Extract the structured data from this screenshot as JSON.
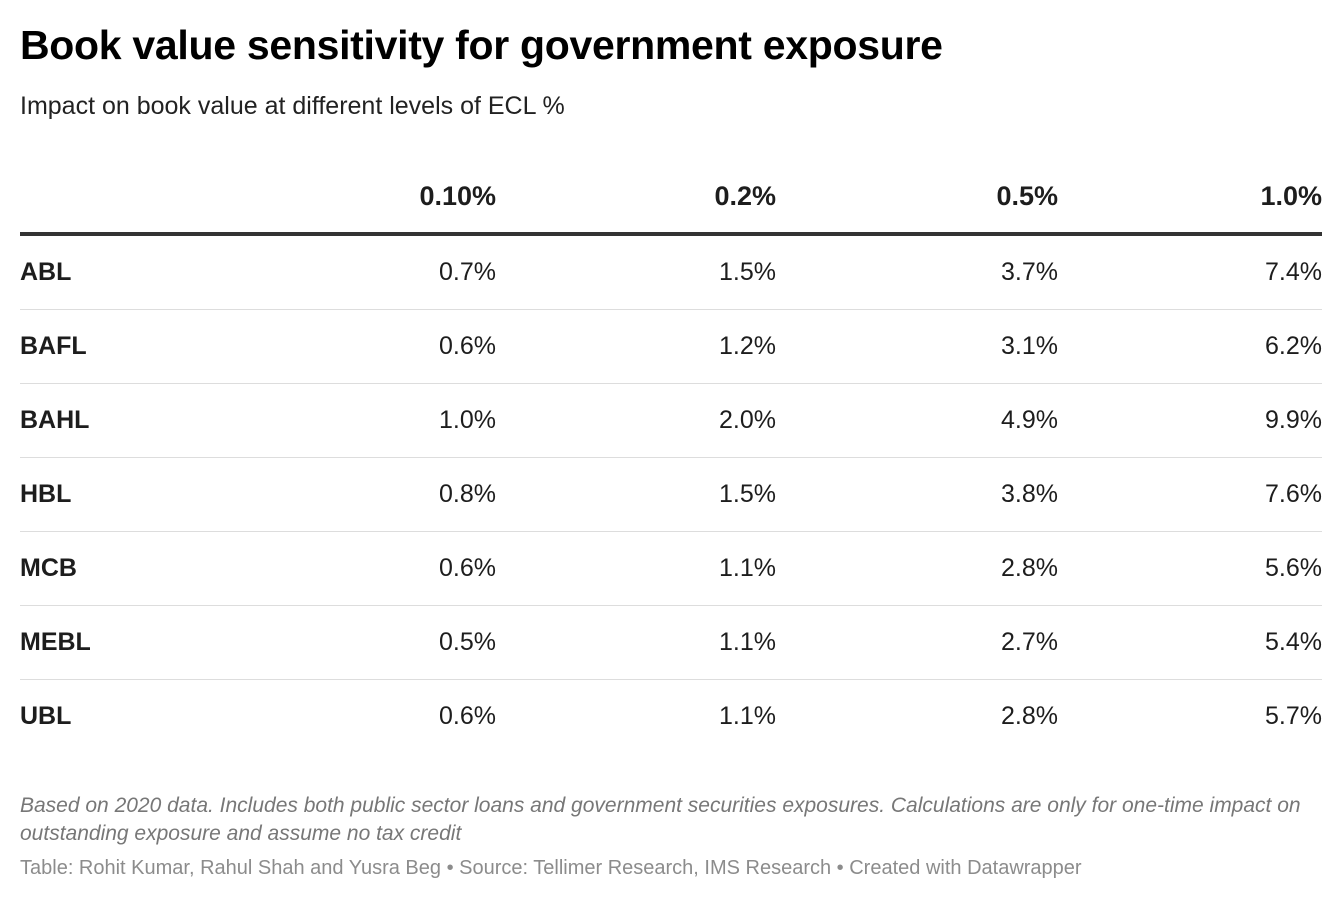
{
  "header": {
    "title": "Book value sensitivity for government exposure",
    "subtitle": "Impact on book value at different levels of ECL %"
  },
  "chart_data": {
    "type": "table",
    "title": "Book value sensitivity for government exposure",
    "subtitle": "Impact on book value at different levels of ECL %",
    "columns": [
      "",
      "0.10%",
      "0.2%",
      "0.5%",
      "1.0%"
    ],
    "rows": [
      {
        "name": "ABL",
        "values": [
          "0.7%",
          "1.5%",
          "3.7%",
          "7.4%"
        ]
      },
      {
        "name": "BAFL",
        "values": [
          "0.6%",
          "1.2%",
          "3.1%",
          "6.2%"
        ]
      },
      {
        "name": "BAHL",
        "values": [
          "1.0%",
          "2.0%",
          "4.9%",
          "9.9%"
        ]
      },
      {
        "name": "HBL",
        "values": [
          "0.8%",
          "1.5%",
          "3.8%",
          "7.6%"
        ]
      },
      {
        "name": "MCB",
        "values": [
          "0.6%",
          "1.1%",
          "2.8%",
          "5.6%"
        ]
      },
      {
        "name": "MEBL",
        "values": [
          "0.5%",
          "1.1%",
          "2.7%",
          "5.4%"
        ]
      },
      {
        "name": "UBL",
        "values": [
          "0.6%",
          "1.1%",
          "2.8%",
          "5.7%"
        ]
      }
    ]
  },
  "footer": {
    "notes": "Based on 2020 data. Includes both public sector loans and government securities exposures. Calculations are only for one-time impact on outstanding exposure and assume no tax credit",
    "credits": "Table: Rohit Kumar, Rahul Shah and Yusra Beg • Source: Tellimer Research, IMS Research • Created with Datawrapper"
  },
  "colors": {
    "text": "#1d1d1d",
    "header_rule": "#333333",
    "row_rule": "#dddddd",
    "notes": "#777777",
    "credits": "#8c8c8c"
  }
}
